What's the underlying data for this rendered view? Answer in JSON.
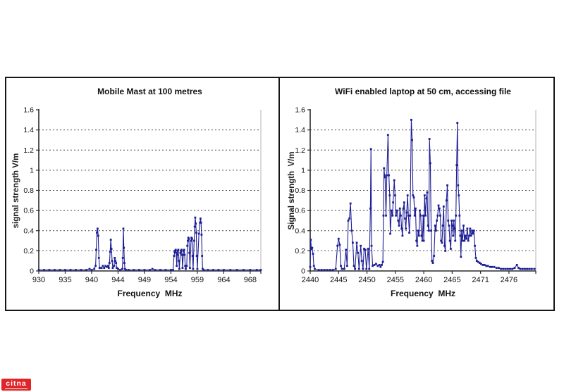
{
  "watermark": {
    "text": "citna",
    "bg_color": "#e02528",
    "text_color": "#ffffff"
  },
  "colors": {
    "panel_border": "#161616",
    "axis": "#2a2a2a",
    "grid": "#4a4a4a",
    "plot_right_border": "#b4b4b4",
    "tick_text": "#141414",
    "series_blue": "#1e1e96"
  },
  "chart_data": [
    {
      "type": "line",
      "title": "Mobile Mast at 100 metres",
      "xlabel": "Frequency  MHz",
      "ylabel": "signal strength V/m",
      "legend": "none",
      "grid": "horizontal-dashed",
      "ylim": [
        0,
        1.6
      ],
      "y_tick_values": [
        0,
        0.2,
        0.4,
        0.6,
        0.8,
        1,
        1.2,
        1.4,
        1.6
      ],
      "y_tick_labels": [
        "0",
        "0.2",
        "0.4",
        "0.6",
        "0.8",
        "1",
        "1.2",
        "1.4",
        "1.6"
      ],
      "x_tick_values": [
        930,
        935,
        940,
        944,
        949,
        954,
        959,
        964,
        968
      ],
      "x_tick_labels": [
        "930",
        "935",
        "940",
        "944",
        "949",
        "954",
        "959",
        "964",
        "968"
      ],
      "x_last_tick_frac": 0.952,
      "line_color": "#1e1e96",
      "points": [
        [
          930,
          0.01
        ],
        [
          931,
          0.01
        ],
        [
          932,
          0.01
        ],
        [
          933,
          0.01
        ],
        [
          934,
          0.01
        ],
        [
          935,
          0.01
        ],
        [
          936,
          0.01
        ],
        [
          937,
          0.01
        ],
        [
          938,
          0.01
        ],
        [
          939,
          0.01
        ],
        [
          939.6,
          0.02
        ],
        [
          940,
          0.01
        ],
        [
          940.4,
          0.02
        ],
        [
          940.6,
          0.05
        ],
        [
          940.7,
          0.21
        ],
        [
          940.8,
          0.38
        ],
        [
          940.9,
          0.42
        ],
        [
          941,
          0.35
        ],
        [
          941.1,
          0.13
        ],
        [
          941.2,
          0.03
        ],
        [
          941.5,
          0.03
        ],
        [
          941.7,
          0.05
        ],
        [
          941.9,
          0.03
        ],
        [
          942.1,
          0.05
        ],
        [
          942.3,
          0.04
        ],
        [
          942.5,
          0.05
        ],
        [
          942.6,
          0.03
        ],
        [
          942.7,
          0.08
        ],
        [
          942.8,
          0.19
        ],
        [
          942.9,
          0.31
        ],
        [
          943,
          0.22
        ],
        [
          943.1,
          0.1
        ],
        [
          943.2,
          0.03
        ],
        [
          943.4,
          0.05
        ],
        [
          943.5,
          0.13
        ],
        [
          943.6,
          0.1
        ],
        [
          943.7,
          0.08
        ],
        [
          943.8,
          0.03
        ],
        [
          944,
          0.02
        ],
        [
          944.4,
          0.01
        ],
        [
          944.8,
          0.02
        ],
        [
          944.9,
          0.13
        ],
        [
          945,
          0.42
        ],
        [
          945.1,
          0.23
        ],
        [
          945.2,
          0.08
        ],
        [
          945.3,
          0.02
        ],
        [
          945.5,
          0.01
        ],
        [
          946,
          0.01
        ],
        [
          947,
          0.01
        ],
        [
          948,
          0.01
        ],
        [
          949,
          0.01
        ],
        [
          950,
          0.01
        ],
        [
          950.5,
          0.02
        ],
        [
          951,
          0.01
        ],
        [
          952,
          0.01
        ],
        [
          953,
          0.01
        ],
        [
          954,
          0.01
        ],
        [
          954.4,
          0.01
        ],
        [
          954.6,
          0.15
        ],
        [
          954.7,
          0.19
        ],
        [
          954.8,
          0.2
        ],
        [
          954.9,
          0.21
        ],
        [
          955,
          0.18
        ],
        [
          955.1,
          0.05
        ],
        [
          955.2,
          0.16
        ],
        [
          955.3,
          0.2
        ],
        [
          955.4,
          0.21
        ],
        [
          955.5,
          0.1
        ],
        [
          955.6,
          0.02
        ],
        [
          955.8,
          0.18
        ],
        [
          955.9,
          0.2
        ],
        [
          956,
          0.21
        ],
        [
          956.1,
          0.16
        ],
        [
          956.2,
          0.03
        ],
        [
          956.4,
          0.2
        ],
        [
          956.5,
          0.21
        ],
        [
          956.6,
          0.16
        ],
        [
          956.7,
          0.05
        ],
        [
          956.8,
          0.02
        ],
        [
          957,
          0.05
        ],
        [
          957.1,
          0.25
        ],
        [
          957.2,
          0.3
        ],
        [
          957.3,
          0.33
        ],
        [
          957.4,
          0.32
        ],
        [
          957.5,
          0.18
        ],
        [
          957.6,
          0.03
        ],
        [
          957.8,
          0.3
        ],
        [
          957.9,
          0.33
        ],
        [
          958,
          0.32
        ],
        [
          958.1,
          0.15
        ],
        [
          958.2,
          0.02
        ],
        [
          958.4,
          0.3
        ],
        [
          958.5,
          0.44
        ],
        [
          958.6,
          0.53
        ],
        [
          958.7,
          0.47
        ],
        [
          958.8,
          0.38
        ],
        [
          958.9,
          0.15
        ],
        [
          959,
          0.02
        ],
        [
          959.3,
          0.37
        ],
        [
          959.5,
          0.48
        ],
        [
          959.6,
          0.52
        ],
        [
          959.7,
          0.48
        ],
        [
          959.8,
          0.36
        ],
        [
          959.9,
          0.15
        ],
        [
          960,
          0.02
        ],
        [
          960.2,
          0.01
        ],
        [
          961,
          0.01
        ],
        [
          962,
          0.01
        ],
        [
          963,
          0.01
        ],
        [
          964,
          0.01
        ],
        [
          965,
          0.01
        ],
        [
          966,
          0.01
        ],
        [
          967,
          0.01
        ],
        [
          968,
          0.01
        ],
        [
          969,
          0.01
        ],
        [
          969.6,
          0.01
        ]
      ]
    },
    {
      "type": "line",
      "title": "WiFi enabled laptop at 50 cm, accessing file",
      "xlabel": "Frequency  MHz",
      "ylabel": "Signal strength  V/m",
      "legend": "none",
      "grid": "horizontal-dashed",
      "ylim": [
        0,
        1.6
      ],
      "y_tick_values": [
        0,
        0.2,
        0.4,
        0.6,
        0.8,
        1,
        1.2,
        1.4,
        1.6
      ],
      "y_tick_labels": [
        "0",
        "0.2",
        "0.4",
        "0.6",
        "0.8",
        "1",
        "1.2",
        "1.4",
        "1.6"
      ],
      "x_tick_values": [
        2440,
        2445,
        2450,
        2455,
        2460,
        2465,
        2471,
        2476
      ],
      "x_tick_labels": [
        "2440",
        "2445",
        "2450",
        "2455",
        "2460",
        "2465",
        "2471",
        "2476"
      ],
      "x_last_tick_frac": 0.881,
      "line_color": "#1e1e96",
      "points": [
        [
          2440,
          0.04
        ],
        [
          2440.1,
          0.31
        ],
        [
          2440.2,
          0.22
        ],
        [
          2440.35,
          0.23
        ],
        [
          2440.5,
          0.17
        ],
        [
          2440.65,
          0.05
        ],
        [
          2440.8,
          0.02
        ],
        [
          2441.5,
          0.01
        ],
        [
          2442,
          0.01
        ],
        [
          2442.5,
          0.01
        ],
        [
          2443,
          0.01
        ],
        [
          2443.5,
          0.01
        ],
        [
          2444,
          0.01
        ],
        [
          2444.5,
          0.02
        ],
        [
          2444.8,
          0.25
        ],
        [
          2445,
          0.32
        ],
        [
          2445.2,
          0.26
        ],
        [
          2445.4,
          0.05
        ],
        [
          2445.6,
          0.02
        ],
        [
          2446,
          0.02
        ],
        [
          2446.3,
          0.21
        ],
        [
          2446.5,
          0.05
        ],
        [
          2446.7,
          0.5
        ],
        [
          2446.9,
          0.52
        ],
        [
          2447.1,
          0.67
        ],
        [
          2447.3,
          0.4
        ],
        [
          2447.5,
          0.28
        ],
        [
          2447.7,
          0.05
        ],
        [
          2447.9,
          0.02
        ],
        [
          2448.2,
          0.28
        ],
        [
          2448.4,
          0.18
        ],
        [
          2448.6,
          0.02
        ],
        [
          2448.9,
          0.25
        ],
        [
          2449.1,
          0.1
        ],
        [
          2449.3,
          0.02
        ],
        [
          2449.5,
          0.22
        ],
        [
          2449.7,
          0.21
        ],
        [
          2449.9,
          0.02
        ],
        [
          2450.2,
          0.22
        ],
        [
          2450.4,
          0.02
        ],
        [
          2450.6,
          0.62
        ],
        [
          2450.7,
          1.21
        ],
        [
          2450.8,
          0.25
        ],
        [
          2451,
          0.05
        ],
        [
          2451.3,
          0.06
        ],
        [
          2451.6,
          0.07
        ],
        [
          2451.9,
          0.05
        ],
        [
          2452.2,
          0.06
        ],
        [
          2452.4,
          0.04
        ],
        [
          2452.6,
          0.06
        ],
        [
          2452.8,
          0.09
        ],
        [
          2452.9,
          0.55
        ],
        [
          2453,
          1.02
        ],
        [
          2453.1,
          0.95
        ],
        [
          2453.2,
          0.93
        ],
        [
          2453.35,
          0.55
        ],
        [
          2453.5,
          0.95
        ],
        [
          2453.7,
          1.35
        ],
        [
          2453.85,
          0.95
        ],
        [
          2454,
          0.75
        ],
        [
          2454.1,
          0.37
        ],
        [
          2454.3,
          0.6
        ],
        [
          2454.5,
          0.55
        ],
        [
          2454.6,
          0.68
        ],
        [
          2454.8,
          0.9
        ],
        [
          2454.95,
          0.75
        ],
        [
          2455.1,
          0.55
        ],
        [
          2455.3,
          0.6
        ],
        [
          2455.5,
          0.5
        ],
        [
          2455.65,
          0.45
        ],
        [
          2455.8,
          0.62
        ],
        [
          2455.95,
          0.55
        ],
        [
          2456.1,
          0.42
        ],
        [
          2456.25,
          0.35
        ],
        [
          2456.4,
          0.62
        ],
        [
          2456.55,
          0.68
        ],
        [
          2456.7,
          0.52
        ],
        [
          2456.85,
          0.42
        ],
        [
          2457,
          0.58
        ],
        [
          2457.15,
          0.75
        ],
        [
          2457.3,
          0.55
        ],
        [
          2457.45,
          0.38
        ],
        [
          2457.6,
          0.55
        ],
        [
          2457.8,
          1.5
        ],
        [
          2457.95,
          1.3
        ],
        [
          2458.1,
          0.75
        ],
        [
          2458.25,
          0.73
        ],
        [
          2458.4,
          0.55
        ],
        [
          2458.55,
          0.62
        ],
        [
          2458.7,
          0.3
        ],
        [
          2458.85,
          0.25
        ],
        [
          2459,
          0.4
        ],
        [
          2459.15,
          0.35
        ],
        [
          2459.3,
          0.6
        ],
        [
          2459.45,
          0.55
        ],
        [
          2459.6,
          0.35
        ],
        [
          2459.75,
          0.3
        ],
        [
          2459.9,
          0.55
        ],
        [
          2460,
          0.3
        ],
        [
          2460.15,
          0.75
        ],
        [
          2460.3,
          0.55
        ],
        [
          2460.45,
          0.72
        ],
        [
          2460.6,
          0.78
        ],
        [
          2460.75,
          0.45
        ],
        [
          2460.9,
          0.4
        ],
        [
          2461,
          1.31
        ],
        [
          2461.15,
          1.07
        ],
        [
          2461.3,
          0.4
        ],
        [
          2461.45,
          0.1
        ],
        [
          2461.6,
          0.08
        ],
        [
          2461.8,
          0.15
        ],
        [
          2462,
          0.45
        ],
        [
          2462.15,
          0.4
        ],
        [
          2462.3,
          0.5
        ],
        [
          2462.45,
          0.55
        ],
        [
          2462.6,
          0.65
        ],
        [
          2462.75,
          0.62
        ],
        [
          2462.9,
          0.55
        ],
        [
          2463.05,
          0.3
        ],
        [
          2463.2,
          0.28
        ],
        [
          2463.35,
          0.45
        ],
        [
          2463.5,
          0.64
        ],
        [
          2463.65,
          0.25
        ],
        [
          2463.8,
          0.2
        ],
        [
          2464,
          0.7
        ],
        [
          2464.15,
          0.85
        ],
        [
          2464.3,
          0.5
        ],
        [
          2464.45,
          0.45
        ],
        [
          2464.6,
          0.3
        ],
        [
          2464.75,
          0.22
        ],
        [
          2464.9,
          0.5
        ],
        [
          2465.05,
          0.45
        ],
        [
          2465.2,
          0.35
        ],
        [
          2465.35,
          0.5
        ],
        [
          2465.5,
          0.42
        ],
        [
          2465.65,
          0.3
        ],
        [
          2465.8,
          0.55
        ],
        [
          2465.95,
          1.05
        ],
        [
          2466.1,
          1.47
        ],
        [
          2466.25,
          0.85
        ],
        [
          2466.4,
          0.75
        ],
        [
          2466.55,
          0.55
        ],
        [
          2466.7,
          0.35
        ],
        [
          2466.85,
          0.14
        ],
        [
          2467,
          0.4
        ],
        [
          2467.2,
          0.3
        ],
        [
          2467.4,
          0.45
        ],
        [
          2467.6,
          0.3
        ],
        [
          2467.8,
          0.35
        ],
        [
          2468,
          0.32
        ],
        [
          2468.2,
          0.42
        ],
        [
          2468.4,
          0.3
        ],
        [
          2468.6,
          0.35
        ],
        [
          2468.8,
          0.42
        ],
        [
          2469,
          0.35
        ],
        [
          2469.2,
          0.4
        ],
        [
          2469.4,
          0.37
        ],
        [
          2469.6,
          0.4
        ],
        [
          2469.8,
          0.25
        ],
        [
          2470,
          0.13
        ],
        [
          2470.2,
          0.1
        ],
        [
          2470.5,
          0.09
        ],
        [
          2470.8,
          0.08
        ],
        [
          2471.1,
          0.07
        ],
        [
          2471.4,
          0.06
        ],
        [
          2471.7,
          0.06
        ],
        [
          2472,
          0.05
        ],
        [
          2472.3,
          0.05
        ],
        [
          2472.7,
          0.04
        ],
        [
          2473,
          0.04
        ],
        [
          2473.4,
          0.04
        ],
        [
          2473.8,
          0.03
        ],
        [
          2474.2,
          0.03
        ],
        [
          2474.6,
          0.02
        ],
        [
          2475,
          0.02
        ],
        [
          2475.4,
          0.02
        ],
        [
          2475.8,
          0.02
        ],
        [
          2476.2,
          0.02
        ],
        [
          2476.6,
          0.02
        ],
        [
          2477,
          0.03
        ],
        [
          2477.4,
          0.06
        ],
        [
          2477.7,
          0.03
        ],
        [
          2478,
          0.02
        ],
        [
          2478.4,
          0.02
        ],
        [
          2478.8,
          0.02
        ],
        [
          2479.2,
          0.02
        ],
        [
          2479.6,
          0.02
        ],
        [
          2480,
          0.02
        ],
        [
          2480.5,
          0.02
        ]
      ]
    }
  ]
}
